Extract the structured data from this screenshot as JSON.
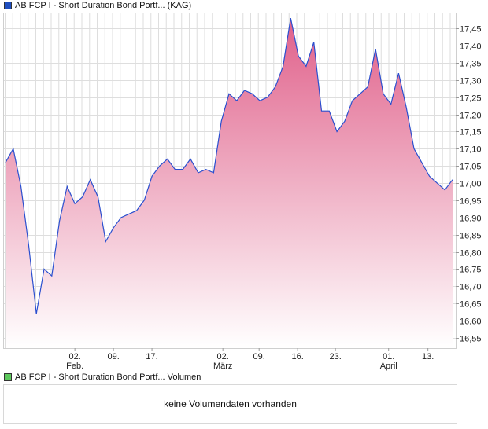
{
  "chart_data": {
    "type": "area",
    "title": "AB FCP I - Short Duration Bond Portf... (KAG)",
    "legend_color": "#1f4fbf",
    "line_color": "#2a4fcf",
    "fill_top_color": "#e0608a",
    "fill_bottom_color": "#ffffff",
    "ylim": [
      16.52,
      17.494
    ],
    "yticks": [
      "16,55",
      "16,60",
      "16,65",
      "16,70",
      "16,75",
      "16,80",
      "16,85",
      "16,90",
      "16,95",
      "17,00",
      "17,05",
      "17,10",
      "17,15",
      "17,20",
      "17,25",
      "17,30",
      "17,35",
      "17,40",
      "17,45"
    ],
    "ytick_values": [
      16.55,
      16.6,
      16.65,
      16.7,
      16.75,
      16.8,
      16.85,
      16.9,
      16.95,
      17.0,
      17.05,
      17.1,
      17.15,
      17.2,
      17.25,
      17.3,
      17.35,
      17.4,
      17.45
    ],
    "xticks": [
      {
        "index": 9,
        "label": "02.",
        "month": "Feb."
      },
      {
        "index": 14,
        "label": "09.",
        "month": ""
      },
      {
        "index": 19,
        "label": "17.",
        "month": ""
      },
      {
        "index": 28.2,
        "label": "02.",
        "month": "März"
      },
      {
        "index": 32.9,
        "label": "09.",
        "month": ""
      },
      {
        "index": 37.9,
        "label": "16.",
        "month": ""
      },
      {
        "index": 42.8,
        "label": "23.",
        "month": ""
      },
      {
        "index": 49.7,
        "label": "01.",
        "month": "April"
      },
      {
        "index": 54.8,
        "label": "13.",
        "month": ""
      }
    ],
    "values": [
      17.06,
      17.1,
      16.99,
      16.82,
      16.62,
      16.75,
      16.73,
      16.89,
      16.99,
      16.94,
      16.96,
      17.01,
      16.96,
      16.83,
      16.87,
      16.9,
      16.91,
      16.92,
      16.95,
      17.02,
      17.05,
      17.07,
      17.04,
      17.04,
      17.07,
      17.03,
      17.04,
      17.03,
      17.18,
      17.26,
      17.24,
      17.27,
      17.26,
      17.24,
      17.25,
      17.28,
      17.34,
      17.48,
      17.37,
      17.34,
      17.41,
      17.21,
      17.21,
      17.15,
      17.18,
      17.24,
      17.26,
      17.28,
      17.39,
      17.26,
      17.23,
      17.32,
      17.22,
      17.1,
      17.06,
      17.02,
      17.0,
      16.98,
      17.01
    ],
    "grid": true
  },
  "volume": {
    "title": "AB FCP I - Short Duration Bond Portf... Volumen",
    "legend_color": "#5cc85c",
    "message": "keine Volumendaten vorhanden"
  }
}
